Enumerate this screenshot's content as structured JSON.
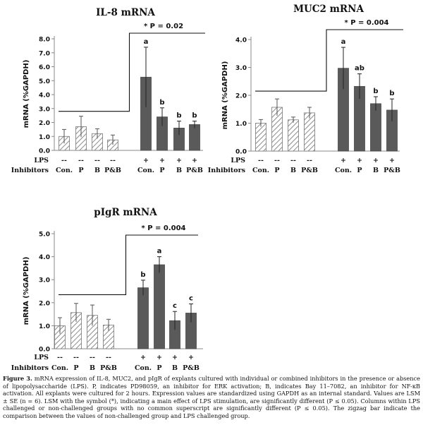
{
  "chart_data": [
    {
      "type": "bar",
      "title": "IL-8 mRNA",
      "ylabel": "mRNA (%GAPDH)",
      "ylim": [
        0,
        8
      ],
      "yticks": [
        "0.0",
        "1.0",
        "2.0",
        "3.0",
        "4.0",
        "5.0",
        "6.0",
        "7.0",
        "8.0"
      ],
      "row_labels": {
        "lps": "LPS",
        "inhibitors": "Inhibitors"
      },
      "lps": [
        "--",
        "--",
        "--",
        "--",
        "+",
        "+",
        "+",
        "+"
      ],
      "categories": [
        "Con.",
        "P",
        "B",
        "P&B",
        "Con.",
        "P",
        "B",
        "P&B"
      ],
      "values": [
        1.0,
        1.7,
        1.2,
        0.75,
        5.25,
        2.4,
        1.6,
        1.85
      ],
      "errors": [
        0.5,
        0.75,
        0.35,
        0.35,
        2.15,
        0.65,
        0.5,
        0.25
      ],
      "letters": [
        "",
        "",
        "",
        "",
        "a",
        "b",
        "b",
        "b"
      ],
      "annotation": {
        "star": "*",
        "label": "P = 0.02"
      },
      "zigzag_level": 2.8
    },
    {
      "type": "bar",
      "title": "MUC2 mRNA",
      "ylabel": "mRNA (%GAPDH)",
      "ylim": [
        0,
        4
      ],
      "yticks": [
        "0.0",
        "1.0",
        "2.0",
        "3.0",
        "4.0"
      ],
      "row_labels": {
        "lps": "LPS",
        "inhibitors": "Inhibitors"
      },
      "lps": [
        "--",
        "--",
        "--",
        "--",
        "+",
        "+",
        "+",
        "+"
      ],
      "categories": [
        "Con.",
        "P",
        "B",
        "P&B",
        "Con.",
        "P",
        "B",
        "P&B"
      ],
      "values": [
        1.0,
        1.57,
        1.12,
        1.37,
        2.97,
        2.32,
        1.7,
        1.47
      ],
      "errors": [
        0.13,
        0.3,
        0.1,
        0.2,
        0.75,
        0.45,
        0.25,
        0.4
      ],
      "letters": [
        "",
        "",
        "",
        "",
        "a",
        "ab",
        "b",
        "b"
      ],
      "annotation": {
        "star": "*",
        "label": "P = 0.004"
      },
      "zigzag_level": 2.15
    },
    {
      "type": "bar",
      "title": "pIgR mRNA",
      "ylabel": "mRNA (%GAPDH)",
      "ylim": [
        0,
        5
      ],
      "yticks": [
        "0.0",
        "1.0",
        "2.0",
        "3.0",
        "4.0",
        "5.0"
      ],
      "row_labels": {
        "lps": "LPS",
        "inhibitors": "Inhibitors"
      },
      "lps": [
        "--",
        "--",
        "--",
        "--",
        "+",
        "+",
        "+",
        "+"
      ],
      "categories": [
        "Con.",
        "P",
        "B",
        "P&B",
        "Con.",
        "P",
        "B",
        "P&B"
      ],
      "values": [
        1.0,
        1.57,
        1.45,
        1.03,
        2.65,
        3.65,
        1.22,
        1.55
      ],
      "errors": [
        0.35,
        0.4,
        0.45,
        0.25,
        0.33,
        0.35,
        0.4,
        0.4
      ],
      "letters": [
        "",
        "",
        "",
        "",
        "b",
        "a",
        "c",
        "c"
      ],
      "annotation": {
        "star": "*",
        "label": "P = 0.004"
      },
      "zigzag_level": 2.35
    }
  ],
  "colors": {
    "challenged_bar": "#5a5a5a",
    "hatch_line": "#6f6f6f",
    "axis": "#888888",
    "text": "#111111"
  },
  "caption": {
    "label": "Figure 3.",
    "text": " mRNA expression of IL-8, MUC2, and pIgR of explants cultured with individual or combined inhibitors in the presence or absence of lipopolysaccharide (LPS). P, indicates PD98059, an inhibitor for ERK activation; B, indicates Bay 11–7082, an inhibitor for NF-κB activation. All explants were cultured for 2 hours. Expression values are standardized using GAPDH as an internal standard. Values are LSM ± SE (n = 6). LSM with the symbol (*), indicating a main effect of LPS stimulation, are significantly different (P ≤ 0.05). Columns within LPS challenged or non-challenged groups with no common superscript are significantly different (P ≤ 0.05). The zigzag bar indicate the comparison between the values of non-challenged group and LPS challenged group."
  }
}
